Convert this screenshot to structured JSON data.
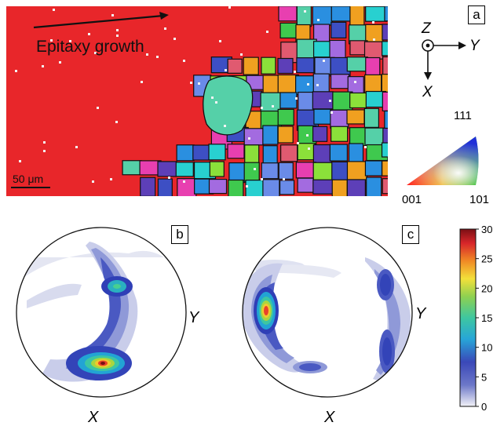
{
  "panel_a": {
    "label": "a",
    "annotation": "Epitaxy growth",
    "scale_bar": "50 μm"
  },
  "axes": {
    "z": "Z",
    "y": "Y",
    "x": "X"
  },
  "ipf_key": {
    "top": "111",
    "left": "001",
    "right": "101"
  },
  "panel_b": {
    "label": "b",
    "x_label": "X",
    "y_label": "Y"
  },
  "panel_c": {
    "label": "c",
    "x_label": "X",
    "y_label": "Y"
  },
  "colorbar": {
    "ticks": [
      "30",
      "25",
      "20",
      "15",
      "10",
      "5",
      "0"
    ],
    "colors": [
      "#f2f2f7",
      "#3a48b8",
      "#27a6d8",
      "#3ec7a0",
      "#8fd150",
      "#f3e03a",
      "#f08a25",
      "#d8262a",
      "#7a0f14"
    ]
  },
  "colors": {
    "matrix_red": "#e8262a",
    "grain_palette": [
      "#3d4fc4",
      "#5d3fb8",
      "#2a8fe0",
      "#55d0a8",
      "#3fc94e",
      "#f0a020",
      "#e83fb0",
      "#a36be0",
      "#28d0d0",
      "#8be03a",
      "#e05a70",
      "#6a8be8"
    ]
  }
}
